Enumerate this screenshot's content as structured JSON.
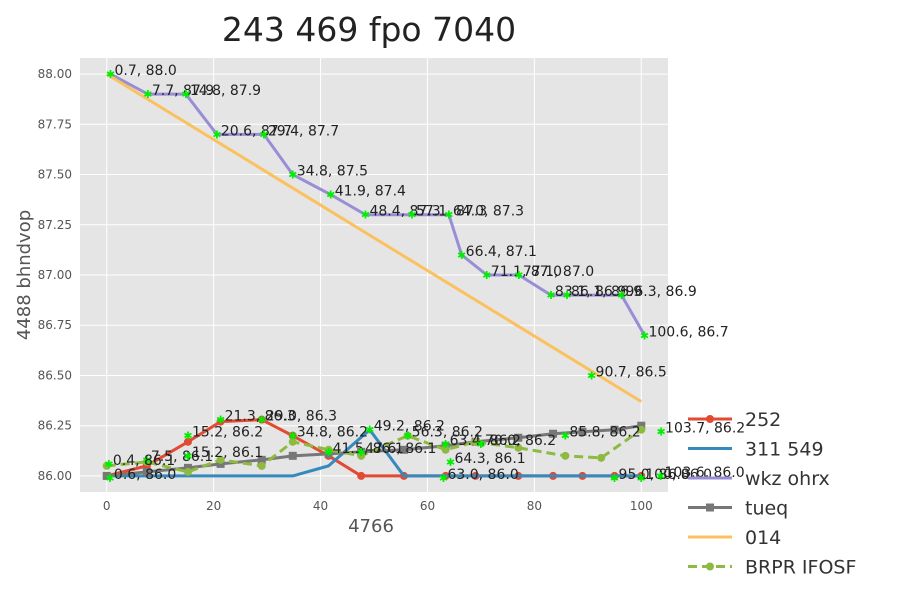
{
  "chart_data": {
    "type": "line",
    "title": "243 469 fpo 7040",
    "xlabel": "4766",
    "ylabel": "4488 bhndvop",
    "xlim": [
      -5,
      105
    ],
    "ylim": [
      85.92,
      88.08
    ],
    "xticks": [
      0,
      20,
      40,
      60,
      80,
      100
    ],
    "yticks": [
      86.0,
      86.25,
      86.5,
      86.75,
      87.0,
      87.25,
      87.5,
      87.75,
      88.0
    ],
    "grid": true,
    "legend_position": "lower-right outside",
    "series": [
      {
        "name": "252",
        "color": "#e24a33",
        "style": "solid",
        "marker": "circle",
        "x": [
          0,
          7.5,
          15.2,
          21.3,
          29.0,
          34.8,
          41.5,
          47.6,
          55.6,
          63.4,
          69.0,
          77.0,
          83.5,
          89.0,
          95.0,
          100
        ],
        "y": [
          86.0,
          86.05,
          86.17,
          86.27,
          86.28,
          86.2,
          86.1,
          86.0,
          86.0,
          86.0,
          86.0,
          86.0,
          86.0,
          86.0,
          86.0,
          86.0
        ]
      },
      {
        "name": "311 549",
        "color": "#348abd",
        "style": "solid",
        "marker": "none",
        "x": [
          0,
          7.5,
          15.2,
          21.3,
          29.0,
          34.8,
          41.5,
          49.2,
          55.6,
          63.4,
          69.0,
          77.0,
          83.5,
          89.0,
          95.0,
          100
        ],
        "y": [
          86.0,
          86.0,
          86.0,
          86.0,
          86.0,
          86.0,
          86.05,
          86.23,
          86.0,
          86.0,
          86.0,
          86.0,
          86.0,
          86.0,
          86.0,
          86.0
        ]
      },
      {
        "name": "wkz ohrx",
        "color": "#988ed5",
        "style": "solid",
        "marker": "none",
        "x": [
          0.7,
          7.7,
          14.8,
          20.6,
          29.4,
          34.8,
          41.9,
          48.4,
          57.1,
          64.0,
          66.4,
          71.1,
          77.1,
          83.1,
          86.1,
          91.0,
          96.3,
          100.6
        ],
        "y": [
          88.0,
          87.9,
          87.9,
          87.7,
          87.7,
          87.5,
          87.4,
          87.3,
          87.3,
          87.3,
          87.1,
          87.0,
          87.0,
          86.9,
          86.9,
          86.9,
          86.9,
          86.7
        ]
      },
      {
        "name": "tueq",
        "color": "#777777",
        "style": "solid",
        "marker": "square",
        "x": [
          0,
          7.5,
          15.2,
          21.3,
          29.0,
          34.8,
          41.5,
          47.6,
          55.6,
          63.4,
          69.0,
          77.0,
          83.5,
          89.0,
          95.0,
          100
        ],
        "y": [
          86.0,
          86.02,
          86.04,
          86.06,
          86.08,
          86.1,
          86.11,
          86.12,
          86.13,
          86.15,
          86.17,
          86.19,
          86.21,
          86.22,
          86.23,
          86.25
        ]
      },
      {
        "name": "014",
        "color": "#fbc15e",
        "style": "solid",
        "marker": "none",
        "x": [
          0,
          100
        ],
        "y": [
          88.0,
          86.37
        ]
      },
      {
        "name": "BRPR IFOSF",
        "color": "#8eba42",
        "style": "dashed",
        "marker": "circle",
        "x": [
          0,
          7.5,
          15.2,
          21.3,
          29.0,
          34.8,
          41.5,
          47.6,
          56.3,
          63.4,
          69.0,
          77.0,
          85.8,
          92.5,
          100
        ],
        "y": [
          86.05,
          86.07,
          86.02,
          86.08,
          86.05,
          86.17,
          86.13,
          86.1,
          86.2,
          86.13,
          86.17,
          86.14,
          86.1,
          86.09,
          86.23
        ]
      }
    ],
    "annotations": [
      {
        "text": "0.7, 88.0",
        "x": 0.7,
        "y": 88.0
      },
      {
        "text": "7.7, 87.9",
        "x": 7.7,
        "y": 87.9
      },
      {
        "text": "14.8, 87.9",
        "x": 14.8,
        "y": 87.9
      },
      {
        "text": "20.6, 87.7",
        "x": 20.6,
        "y": 87.7
      },
      {
        "text": "29.4, 87.7",
        "x": 29.4,
        "y": 87.7
      },
      {
        "text": "34.8, 87.5",
        "x": 34.8,
        "y": 87.5
      },
      {
        "text": "41.9, 87.4",
        "x": 41.9,
        "y": 87.4
      },
      {
        "text": "48.4, 87.3",
        "x": 48.4,
        "y": 87.3
      },
      {
        "text": "57.1, 87.3",
        "x": 57.1,
        "y": 87.3
      },
      {
        "text": "64.0, 87.3",
        "x": 64.0,
        "y": 87.3
      },
      {
        "text": "66.4, 87.1",
        "x": 66.4,
        "y": 87.1
      },
      {
        "text": "71.1, 87.0",
        "x": 71.1,
        "y": 87.0
      },
      {
        "text": "77.1, 87.0",
        "x": 77.1,
        "y": 87.0
      },
      {
        "text": "83.1, 86.9",
        "x": 83.1,
        "y": 86.9
      },
      {
        "text": "86.1, 86.9",
        "x": 86.1,
        "y": 86.9
      },
      {
        "text": "96.3, 86.9",
        "x": 96.3,
        "y": 86.9
      },
      {
        "text": "100.6, 86.7",
        "x": 100.6,
        "y": 86.7
      },
      {
        "text": "90.7, 86.5",
        "x": 90.7,
        "y": 86.5
      },
      {
        "text": "21.3, 86.3",
        "x": 21.3,
        "y": 86.28
      },
      {
        "text": "29.0, 86.3",
        "x": 29.0,
        "y": 86.28
      },
      {
        "text": "15.2, 86.2",
        "x": 15.2,
        "y": 86.2
      },
      {
        "text": "34.8, 86.2",
        "x": 34.8,
        "y": 86.2
      },
      {
        "text": "49.2, 86.2",
        "x": 49.2,
        "y": 86.23
      },
      {
        "text": "56.3, 86.2",
        "x": 56.3,
        "y": 86.2
      },
      {
        "text": "63.4, 86.2",
        "x": 63.4,
        "y": 86.16
      },
      {
        "text": "70.0, 86.2",
        "x": 70.0,
        "y": 86.16
      },
      {
        "text": "85.8, 86.2",
        "x": 85.8,
        "y": 86.2
      },
      {
        "text": "103.7, 86.2",
        "x": 103.7,
        "y": 86.22
      },
      {
        "text": "7.5, 86.1",
        "x": 7.5,
        "y": 86.08
      },
      {
        "text": "15.2, 86.1",
        "x": 15.2,
        "y": 86.1
      },
      {
        "text": "41.5, 86.1",
        "x": 41.5,
        "y": 86.12
      },
      {
        "text": "47.6, 86.1",
        "x": 47.6,
        "y": 86.12
      },
      {
        "text": "64.3, 86.1",
        "x": 64.3,
        "y": 86.07
      },
      {
        "text": "0.4, 86.1",
        "x": 0.4,
        "y": 86.06
      },
      {
        "text": "0.6, 86.0",
        "x": 0.6,
        "y": 85.99
      },
      {
        "text": "63.0, 86.0",
        "x": 63.0,
        "y": 85.99
      },
      {
        "text": "95.0, 86.0",
        "x": 95.0,
        "y": 85.99
      },
      {
        "text": "100, 86.0",
        "x": 100.0,
        "y": 85.99
      },
      {
        "text": "103.6, 86.0",
        "x": 103.6,
        "y": 86.0
      }
    ]
  }
}
